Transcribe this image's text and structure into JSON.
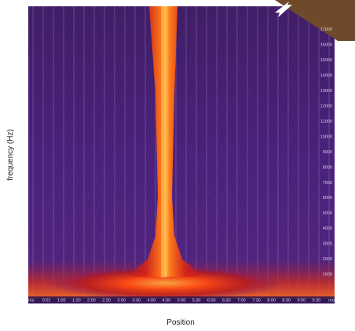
{
  "chart_data": {
    "type": "heatmap",
    "title": "",
    "xlabel": "Position",
    "ylabel": "frequency (Hz)",
    "yticks": [
      1000,
      2000,
      3000,
      4000,
      5000,
      6000,
      7000,
      8000,
      9000,
      10000,
      11000,
      12000,
      13000,
      14000,
      15000,
      16000,
      17000
    ],
    "xtick_labels": [
      "mo",
      "0:01",
      "1:00",
      "1:30",
      "2:00",
      "2:30",
      "3:00",
      "3:30",
      "4:00",
      "4:30",
      "5:00",
      "5:30",
      "6:00",
      "6:30",
      "7:00",
      "7:30",
      "8:00",
      "8:30",
      "9:00",
      "9:30",
      "mo"
    ],
    "ylim": [
      0,
      18500
    ],
    "colormap": [
      "#1a0630",
      "#3a1466",
      "#6b1a80",
      "#c81e1e",
      "#ff5a10",
      "#ffd27a"
    ],
    "grid": "vertical"
  }
}
